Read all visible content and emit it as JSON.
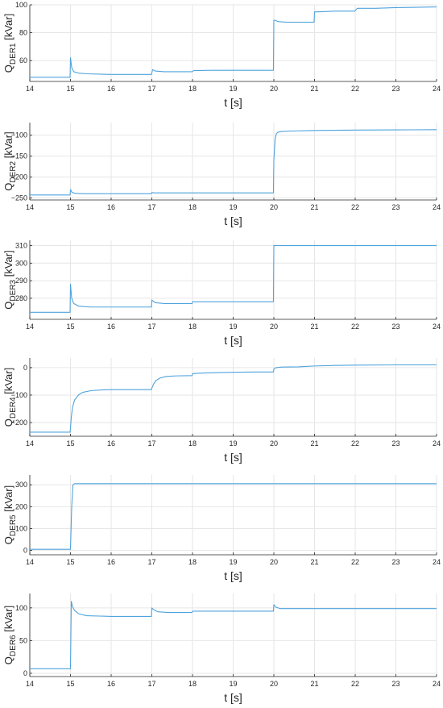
{
  "colors": {
    "line": "#4fa3dd",
    "grid": "#e6e6e6",
    "axis": "#262626",
    "background": "#ffffff"
  },
  "chart_data": [
    {
      "type": "line",
      "ylabel": {
        "main": "Q",
        "sub": "DER1",
        "unit": "[kVar]"
      },
      "xlabel": "t [s]",
      "xlim": [
        14,
        24
      ],
      "ylim": [
        45,
        100
      ],
      "xticks": [
        "14",
        "15",
        "16",
        "17",
        "18",
        "19",
        "20",
        "21",
        "22",
        "23",
        "24"
      ],
      "yticks": [
        {
          "v": 60,
          "label": "60"
        },
        {
          "v": 80,
          "label": "80"
        },
        {
          "v": 100,
          "label": "100"
        }
      ],
      "grid": true,
      "series": [
        {
          "x": [
            14,
            14.99,
            15.0,
            15.03,
            15.08,
            15.2,
            15.4,
            16,
            16.5,
            16.99,
            17.02,
            17.08,
            17.3,
            17.99,
            18.03,
            18.5,
            19,
            19.99,
            20.0,
            20.03,
            20.1,
            20.3,
            20.99,
            21.0,
            21.08,
            21.5,
            21.99,
            22.05,
            22.5,
            23,
            24
          ],
          "y": [
            48,
            48,
            62,
            55,
            52,
            51,
            50.5,
            50,
            50,
            50,
            53.5,
            52.5,
            52,
            52,
            52.8,
            53,
            53,
            53,
            89,
            89,
            88,
            87.5,
            87.5,
            95,
            95,
            95.5,
            95.5,
            97.5,
            97.5,
            98,
            98.5
          ]
        }
      ]
    },
    {
      "type": "line",
      "ylabel": {
        "main": "Q",
        "sub": "DER2",
        "unit": "[kVar]"
      },
      "xlabel": "t [s]",
      "xlim": [
        14,
        24
      ],
      "ylim": [
        -255,
        -70
      ],
      "xticks": [
        "14",
        "15",
        "16",
        "17",
        "18",
        "19",
        "20",
        "21",
        "22",
        "23",
        "24"
      ],
      "yticks": [
        {
          "v": -250,
          "label": "−250"
        },
        {
          "v": -200,
          "label": "−200"
        },
        {
          "v": -150,
          "label": "−150"
        },
        {
          "v": -100,
          "label": "−100"
        }
      ],
      "grid": true,
      "series": [
        {
          "x": [
            14,
            14.99,
            15.0,
            15.03,
            15.1,
            15.3,
            16,
            16.99,
            17.0,
            17.05,
            17.3,
            17.99,
            18.0,
            18.5,
            19,
            19.99,
            20.0,
            20.03,
            20.06,
            20.1,
            20.2,
            20.5,
            21,
            21.5,
            22,
            23,
            24
          ],
          "y": [
            -243,
            -243,
            -230,
            -236,
            -239,
            -240,
            -240,
            -240,
            -237,
            -238,
            -238,
            -238,
            -238,
            -238,
            -238,
            -238,
            -160,
            -110,
            -97,
            -93,
            -91,
            -90,
            -89,
            -88.5,
            -88,
            -87.5,
            -87
          ]
        }
      ]
    },
    {
      "type": "line",
      "ylabel": {
        "main": "Q",
        "sub": "DER3",
        "unit": "[kVar]"
      },
      "xlabel": "t [s]",
      "xlim": [
        14,
        24
      ],
      "ylim": [
        268,
        313
      ],
      "xticks": [
        "14",
        "15",
        "16",
        "17",
        "18",
        "19",
        "20",
        "21",
        "22",
        "23",
        "24"
      ],
      "yticks": [
        {
          "v": 280,
          "label": "280"
        },
        {
          "v": 290,
          "label": "290"
        },
        {
          "v": 300,
          "label": "300"
        },
        {
          "v": 310,
          "label": "310"
        }
      ],
      "grid": true,
      "series": [
        {
          "x": [
            14,
            14.99,
            15.0,
            15.03,
            15.08,
            15.2,
            15.5,
            16,
            16.99,
            17.0,
            17.08,
            17.3,
            17.99,
            18.0,
            18.5,
            19,
            19.99,
            20.0,
            20.03,
            20.2,
            21,
            22,
            23,
            24
          ],
          "y": [
            272,
            272,
            288,
            280,
            277,
            275.5,
            275,
            275,
            275,
            279,
            277.5,
            277,
            277,
            278,
            278,
            278,
            278,
            310,
            310,
            310,
            310,
            310,
            310,
            310
          ]
        }
      ]
    },
    {
      "type": "line",
      "ylabel": {
        "main": "Q",
        "sub": "DER4",
        "unit": "[kVar]"
      },
      "xlabel": "t [s]",
      "xlim": [
        14,
        24
      ],
      "ylim": [
        -250,
        35
      ],
      "xticks": [
        "14",
        "15",
        "16",
        "17",
        "18",
        "19",
        "20",
        "21",
        "22",
        "23",
        "24"
      ],
      "yticks": [
        {
          "v": -200,
          "label": "−200"
        },
        {
          "v": -100,
          "label": "−100"
        },
        {
          "v": 0,
          "label": "0"
        }
      ],
      "grid": true,
      "series": [
        {
          "x": [
            14,
            14.99,
            15.0,
            15.02,
            15.05,
            15.1,
            15.2,
            15.3,
            15.5,
            15.8,
            16,
            16.5,
            16.99,
            17.0,
            17.05,
            17.1,
            17.2,
            17.35,
            17.6,
            17.99,
            18.0,
            18.2,
            18.6,
            19,
            19.5,
            19.99,
            20.0,
            20.05,
            20.2,
            20.6,
            21,
            21.5,
            22,
            23,
            24
          ],
          "y": [
            -235,
            -235,
            -220,
            -180,
            -145,
            -118,
            -99,
            -90,
            -84,
            -81,
            -80,
            -80,
            -80,
            -75,
            -58,
            -47,
            -38,
            -32,
            -30,
            -29,
            -22,
            -20,
            -18,
            -17,
            -16,
            -16,
            -5,
            0,
            2,
            3,
            6,
            8,
            9,
            10,
            10
          ]
        }
      ]
    },
    {
      "type": "line",
      "ylabel": {
        "main": "Q",
        "sub": "DER5",
        "unit": "[kVar]"
      },
      "xlabel": "t [s]",
      "xlim": [
        14,
        24
      ],
      "ylim": [
        -20,
        345
      ],
      "xticks": [
        "14",
        "15",
        "16",
        "17",
        "18",
        "19",
        "20",
        "21",
        "22",
        "23",
        "24"
      ],
      "yticks": [
        {
          "v": 0,
          "label": "0"
        },
        {
          "v": 100,
          "label": "100"
        },
        {
          "v": 200,
          "label": "200"
        },
        {
          "v": 300,
          "label": "300"
        }
      ],
      "grid": true,
      "series": [
        {
          "x": [
            14,
            14.99,
            15.0,
            15.03,
            15.06,
            15.1,
            16,
            17,
            18,
            19,
            20,
            21,
            22,
            23,
            24
          ],
          "y": [
            5,
            5,
            5,
            200,
            300,
            305,
            305,
            305,
            305,
            305,
            305,
            305,
            305,
            305,
            305
          ]
        }
      ]
    },
    {
      "type": "line",
      "ylabel": {
        "main": "Q",
        "sub": "DER6",
        "unit": "[kVar]"
      },
      "xlabel": "t [s]",
      "xlim": [
        14,
        24
      ],
      "ylim": [
        -5,
        122
      ],
      "xticks": [
        "14",
        "15",
        "16",
        "17",
        "18",
        "19",
        "20",
        "21",
        "22",
        "23",
        "24"
      ],
      "yticks": [
        {
          "v": 0,
          "label": "0"
        },
        {
          "v": 50,
          "label": "50"
        },
        {
          "v": 100,
          "label": "100"
        }
      ],
      "grid": true,
      "series": [
        {
          "x": [
            14,
            14.99,
            15.0,
            15.02,
            15.05,
            15.1,
            15.2,
            15.4,
            16,
            16.99,
            17.0,
            17.05,
            17.15,
            17.4,
            17.99,
            18.0,
            18.5,
            19,
            19.99,
            20.0,
            20.05,
            20.15,
            20.5,
            21,
            22,
            23,
            24
          ],
          "y": [
            7,
            7,
            7,
            110,
            102,
            96,
            91,
            88,
            87,
            87,
            100,
            97,
            94,
            93,
            93,
            95,
            95,
            95,
            95,
            105,
            101,
            99,
            99,
            99,
            99,
            99,
            99
          ]
        }
      ]
    }
  ]
}
